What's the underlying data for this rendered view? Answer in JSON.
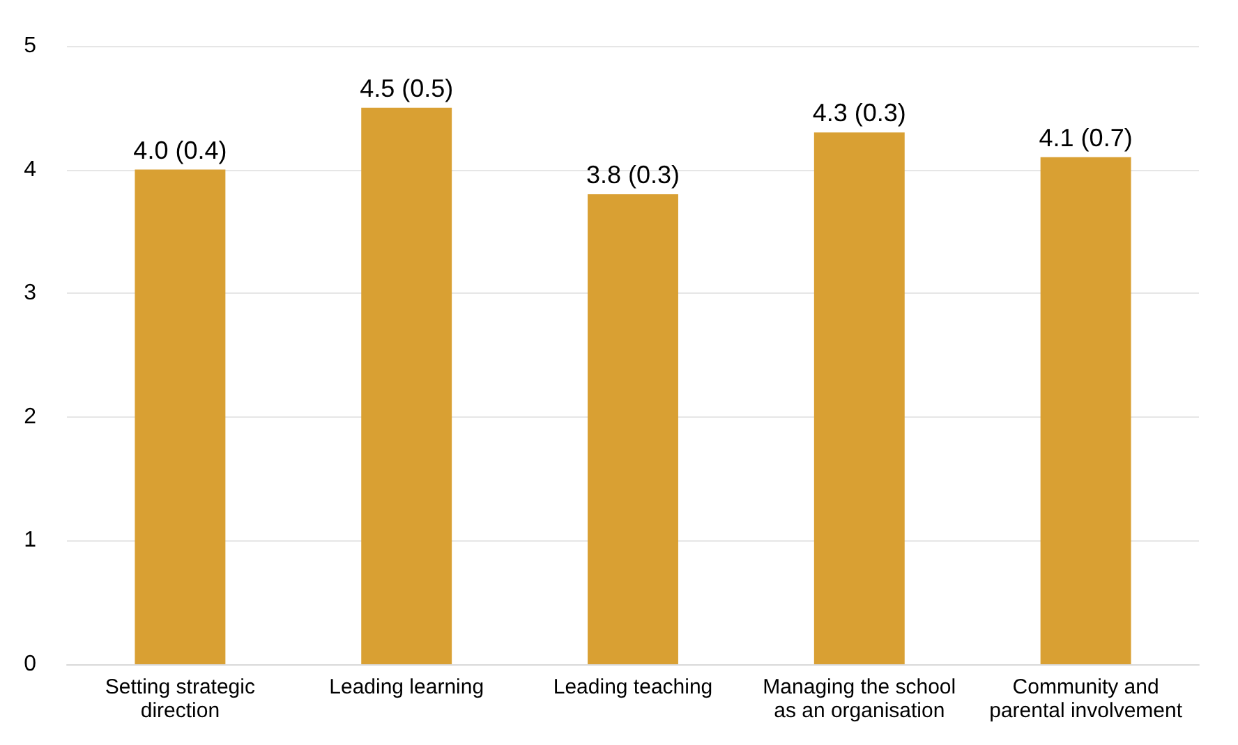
{
  "chart_data": {
    "type": "bar",
    "categories": [
      "Setting strategic\ndirection",
      "Leading learning",
      "Leading teaching",
      "Managing the school\nas an organisation",
      "Community and\nparental involvement"
    ],
    "values": [
      4.0,
      4.5,
      3.8,
      4.3,
      4.1
    ],
    "value_labels": [
      "4.0 (0.4)",
      "4.5 (0.5)",
      "3.8 (0.3)",
      "4.3 (0.3)",
      "4.1 (0.7)"
    ],
    "color": "#d9a033",
    "ylim": [
      0,
      5
    ],
    "yticks": [
      0,
      1,
      2,
      3,
      4,
      5
    ],
    "grid": "y"
  }
}
